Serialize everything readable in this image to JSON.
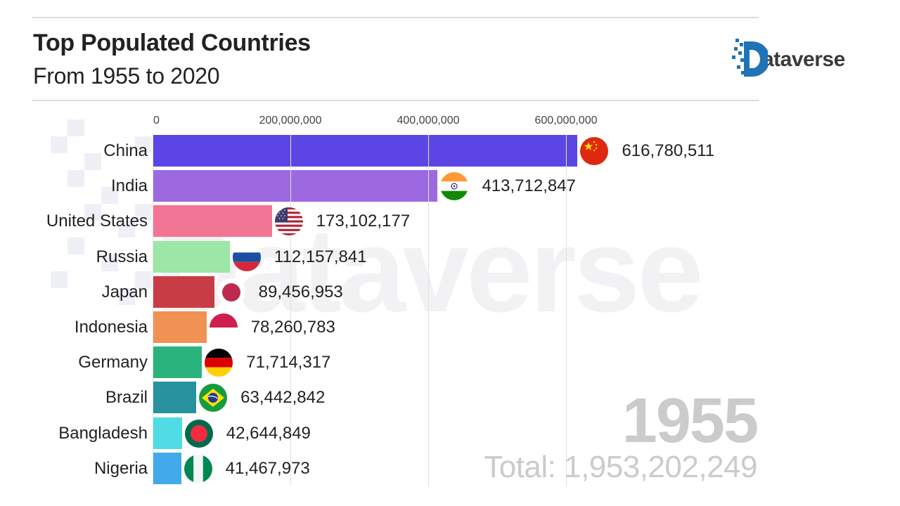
{
  "header": {
    "title": "Top Populated Countries",
    "subtitle": "From 1955 to 2020"
  },
  "logo": {
    "text": "ataverse",
    "full_name": "Dataverse",
    "color": "#1f73b7"
  },
  "watermark": {
    "text": "Dataverse"
  },
  "year_display": {
    "year": "1955",
    "total": "Total: 1,953,202,249"
  },
  "chart_data": {
    "type": "bar",
    "orientation": "horizontal",
    "title": "Top Populated Countries",
    "subtitle": "From 1955 to 2020",
    "xlabel": "",
    "ylabel": "",
    "xlim": [
      0,
      800000000
    ],
    "x_ticks": [
      0,
      200000000,
      400000000,
      600000000
    ],
    "x_tick_labels": [
      "0",
      "200,000,000",
      "400,000,000",
      "600,000,000"
    ],
    "grid": true,
    "legend": null,
    "annotations": [
      "1955",
      "Total: 1,953,202,249"
    ],
    "categories": [
      "China",
      "India",
      "United States",
      "Russia",
      "Japan",
      "Indonesia",
      "Germany",
      "Brazil",
      "Bangladesh",
      "Nigeria"
    ],
    "values": [
      616780511,
      413712847,
      173102177,
      112157841,
      89456953,
      78260783,
      71714317,
      63442842,
      42644849,
      41467973
    ],
    "value_labels": [
      "616,780,511",
      "413,712,847",
      "173,102,177",
      "112,157,841",
      "89,456,953",
      "78,260,783",
      "71,714,317",
      "63,442,842",
      "42,644,849",
      "41,467,973"
    ],
    "colors": [
      "#5b45e4",
      "#9d69e1",
      "#f37596",
      "#9ce6a6",
      "#c83d45",
      "#ef9253",
      "#2bb37e",
      "#27919d",
      "#4fdce4",
      "#42aaea"
    ],
    "flags": [
      "china-flag",
      "india-flag",
      "usa-flag",
      "russia-flag",
      "japan-flag",
      "indonesia-flag",
      "germany-flag",
      "brazil-flag",
      "bangladesh-flag",
      "nigeria-flag"
    ]
  }
}
